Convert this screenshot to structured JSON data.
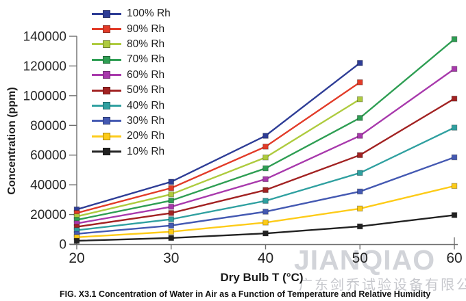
{
  "caption": "FIG. X3.1 Concentration of Water in Air as a Function of Temperature and Relative Humidity",
  "watermark": {
    "brand": "JIANQIAO",
    "company": "广东剑乔试验设备有限公司",
    "brand_color": "#d2d4d9",
    "company_color": "#c6c7cc"
  },
  "chart_data": {
    "type": "line",
    "title": "",
    "xlabel": "Dry Bulb T (°C)",
    "ylabel": "Concentration (ppm)",
    "x": [
      20,
      30,
      40,
      50,
      60
    ],
    "x_ticks": [
      20,
      30,
      40,
      50,
      60
    ],
    "y_ticks": [
      0,
      20000,
      40000,
      60000,
      80000,
      100000,
      120000,
      140000
    ],
    "xlim": [
      20,
      60
    ],
    "ylim": [
      0,
      140000
    ],
    "grid": false,
    "legend_position": "top-left",
    "marker": "square",
    "axis_color": "#6e6e6e",
    "tick_label_color": "#262626",
    "series": [
      {
        "name": "100% Rh",
        "color": "#2e3d96",
        "values": [
          23400,
          42000,
          73000,
          122000
        ]
      },
      {
        "name": "90% Rh",
        "color": "#e23b28",
        "values": [
          21000,
          37800,
          65700,
          109000
        ]
      },
      {
        "name": "80% Rh",
        "color": "#aecb3e",
        "values": [
          18700,
          33600,
          58400,
          97600
        ]
      },
      {
        "name": "70% Rh",
        "color": "#2e9e53",
        "values": [
          16400,
          29400,
          51100,
          85000,
          138000
        ]
      },
      {
        "name": "60% Rh",
        "color": "#a839ac",
        "values": [
          14000,
          25200,
          43800,
          73000,
          118000
        ]
      },
      {
        "name": "50% Rh",
        "color": "#a22222",
        "values": [
          11700,
          21000,
          36500,
          60000,
          98000
        ]
      },
      {
        "name": "40% Rh",
        "color": "#2fa0a0",
        "values": [
          9400,
          16800,
          29200,
          48000,
          78500
        ]
      },
      {
        "name": "30% Rh",
        "color": "#4459b2",
        "values": [
          7000,
          12600,
          21900,
          35500,
          58500
        ]
      },
      {
        "name": "20% Rh",
        "color": "#fdcb18",
        "values": [
          4700,
          8400,
          14600,
          24000,
          39200
        ]
      },
      {
        "name": "10% Rh",
        "color": "#212121",
        "values": [
          2300,
          4200,
          7300,
          12000,
          19600
        ]
      }
    ]
  }
}
